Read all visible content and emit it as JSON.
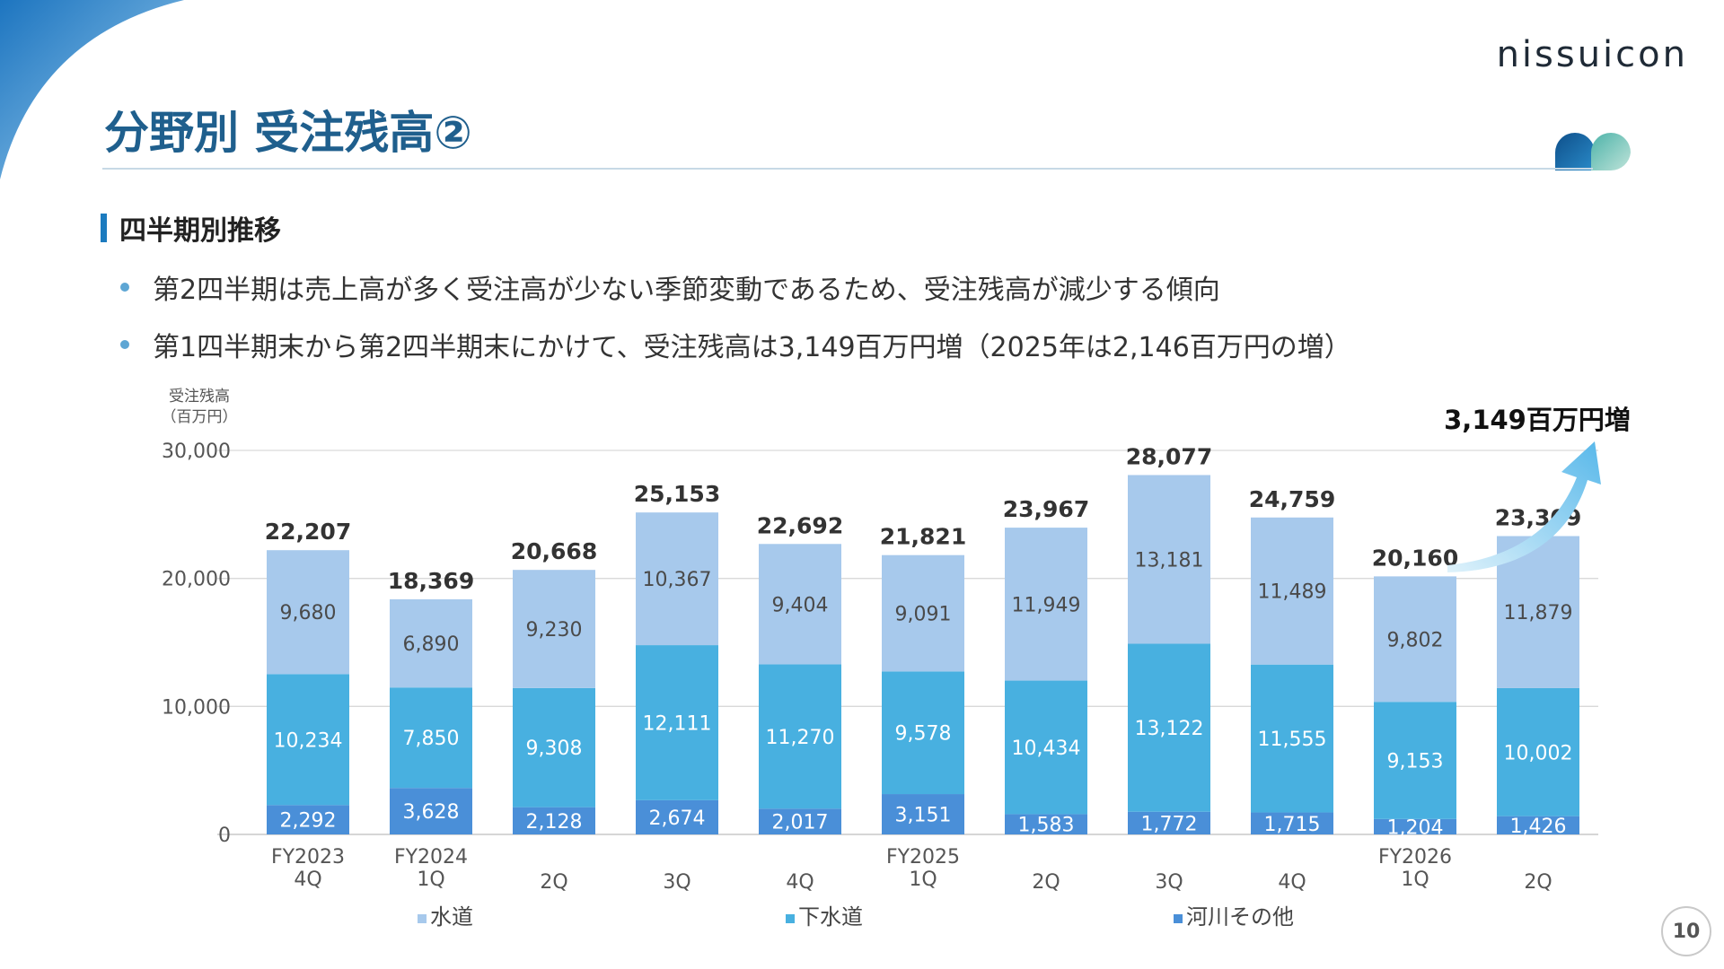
{
  "brand": {
    "logo_text": "nissuicon"
  },
  "title": "分野別 受注残高②",
  "section": {
    "heading": "四半期別推移"
  },
  "bullets": [
    "第2四半期は売上高が多く受注高が少ない季節変動であるため、受注残高が減少する傾向",
    "第1四半期末から第2四半期末にかけて、受注残高は3,149百万円増（2025年は2,146百万円の増）"
  ],
  "page_number": "10",
  "colors": {
    "title": "#1f5f8d",
    "水道": "#a7c9ec",
    "下水道": "#48b0e0",
    "河川その他": "#4a8fd8",
    "arrow": "#7fc8ef"
  },
  "chart_data": {
    "type": "bar",
    "stacked": true,
    "ylabel": "受注残高\n（百万円）",
    "ylim": [
      0,
      30000
    ],
    "yticks": [
      "0",
      "10,000",
      "20,000",
      "30,000"
    ],
    "grid": true,
    "categories": [
      [
        "FY2023",
        "4Q"
      ],
      [
        "FY2024",
        "1Q"
      ],
      [
        "",
        "2Q"
      ],
      [
        "",
        "3Q"
      ],
      [
        "",
        "4Q"
      ],
      [
        "FY2025",
        "1Q"
      ],
      [
        "",
        "2Q"
      ],
      [
        "",
        "3Q"
      ],
      [
        "",
        "4Q"
      ],
      [
        "FY2026",
        "1Q"
      ],
      [
        "",
        "2Q"
      ]
    ],
    "series": [
      {
        "name": "河川その他",
        "values": [
          2292,
          3628,
          2128,
          2674,
          2017,
          3151,
          1583,
          1772,
          1715,
          1204,
          1426
        ],
        "labels": [
          "2,292",
          "3,628",
          "2,128",
          "2,674",
          "2,017",
          "3,151",
          "1,583",
          "1,772",
          "1,715",
          "1,204",
          "1,426"
        ]
      },
      {
        "name": "下水道",
        "values": [
          10234,
          7850,
          9308,
          12111,
          11270,
          9578,
          10434,
          13122,
          11555,
          9153,
          10002
        ],
        "labels": [
          "10,234",
          "7,850",
          "9,308",
          "12,111",
          "11,270",
          "9,578",
          "10,434",
          "13,122",
          "11,555",
          "9,153",
          "10,002"
        ]
      },
      {
        "name": "水道",
        "values": [
          9680,
          6890,
          9230,
          10367,
          9404,
          9091,
          11949,
          13181,
          11489,
          9802,
          11879
        ],
        "labels": [
          "9,680",
          "6,890",
          "9,230",
          "10,367",
          "9,404",
          "9,091",
          "11,949",
          "13,181",
          "11,489",
          "9,802",
          "11,879"
        ]
      }
    ],
    "totals": [
      22207,
      18369,
      20668,
      25153,
      22692,
      21821,
      23967,
      28077,
      24759,
      20160,
      23309
    ],
    "total_labels": [
      "22,207",
      "18,369",
      "20,668",
      "25,153",
      "22,692",
      "21,821",
      "23,967",
      "28,077",
      "24,759",
      "20,160",
      "23,309"
    ],
    "annotation": "3,149百万円増",
    "legend": [
      "水道",
      "下水道",
      "河川その他"
    ],
    "legend_position": "bottom"
  }
}
